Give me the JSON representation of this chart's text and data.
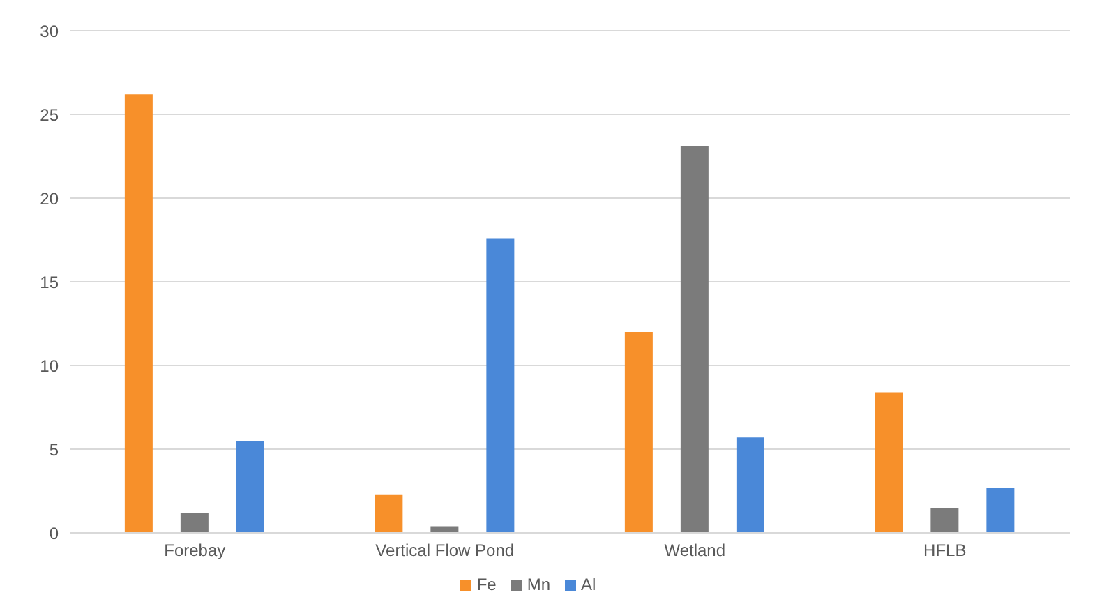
{
  "chart_data": {
    "type": "bar",
    "categories": [
      "Forebay",
      "Vertical Flow Pond",
      "Wetland",
      "HFLB"
    ],
    "series": [
      {
        "name": "Fe",
        "color": "#f7902a",
        "values": [
          26.2,
          2.3,
          12,
          8.4
        ]
      },
      {
        "name": "Mn",
        "color": "#7b7b7b",
        "values": [
          1.2,
          0.4,
          23.1,
          1.5
        ]
      },
      {
        "name": "Al",
        "color": "#4a88d8",
        "values": [
          5.5,
          17.6,
          5.7,
          2.7
        ]
      }
    ],
    "ylim": [
      0,
      30
    ],
    "yticks": [
      0,
      5,
      10,
      15,
      20,
      25,
      30
    ],
    "grid": "y",
    "legend": "bottom"
  }
}
